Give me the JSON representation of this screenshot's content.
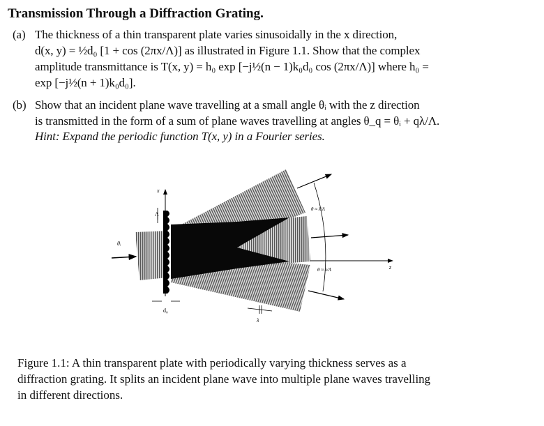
{
  "title": "Transmission Through a Diffraction Grating.",
  "part_a": {
    "label": "(a)",
    "lines": [
      "The thickness of a thin transparent plate varies sinusoidally in the x direction,",
      "d(x, y) = ½d₀ [1 + cos (2πx/Λ)] as illustrated in Figure 1.1. Show that the complex",
      "amplitude transmittance is T(x, y) = h₀ exp [−j½(n − 1)k₀d₀ cos (2πx/Λ)] where h₀ =",
      "exp [−j½(n + 1)k₀d₀]."
    ]
  },
  "part_b": {
    "label": "(b)",
    "lines": [
      "Show that an incident plane wave travelling at a small angle θᵢ with the z direction",
      "is transmitted in the form of a sum of plane waves travelling at angles θ_q = θᵢ + qλ/Λ.",
      "Hint: Expand the periodic function T(x, y) in a Fourier series."
    ]
  },
  "figure": {
    "labels": {
      "x_axis": "x",
      "z_axis": "z",
      "period": "Λ",
      "thickness": "d₀",
      "incident_angle": "θᵢ",
      "wavelength": "λ",
      "angle_upper": "θ ≈ λ/Λ",
      "angle_lower": "θ ≈ λ/Λ"
    }
  },
  "caption": {
    "lines": [
      "Figure 1.1: A thin transparent plate with periodically varying thickness serves as a",
      "diffraction grating. It splits an incident plane wave into multiple plane waves travelling",
      "in different directions."
    ]
  }
}
